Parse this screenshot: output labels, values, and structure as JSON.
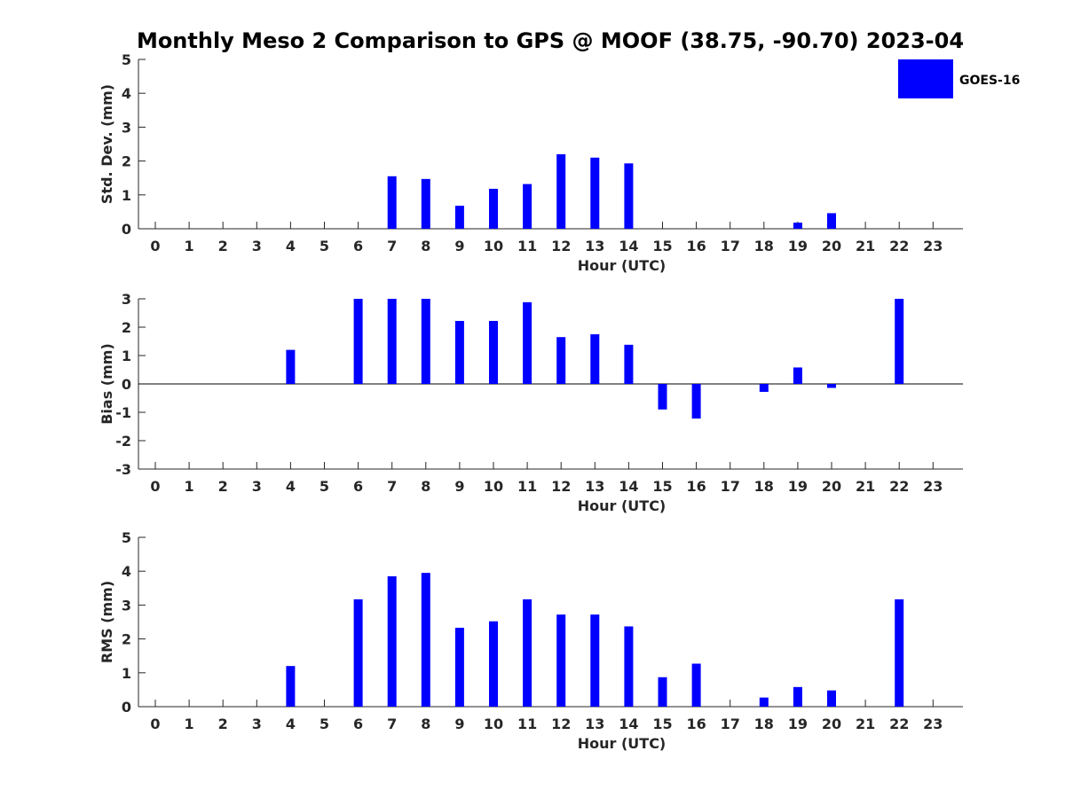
{
  "title": "Monthly Meso 2 Comparison to GPS @ MOOF (38.75, -90.70) 2023-04",
  "legend": {
    "label": "GOES-16",
    "color": "#0000ff"
  },
  "chart_data": [
    {
      "type": "bar",
      "name": "std-dev",
      "xlabel": "Hour (UTC)",
      "ylabel": "Std. Dev. (mm)",
      "ylim": [
        0,
        5
      ],
      "yticks": [
        0,
        1,
        2,
        3,
        4,
        5
      ],
      "categories": [
        "0",
        "1",
        "2",
        "3",
        "4",
        "5",
        "6",
        "7",
        "8",
        "9",
        "10",
        "11",
        "12",
        "13",
        "14",
        "15",
        "16",
        "17",
        "18",
        "19",
        "20",
        "21",
        "22",
        "23"
      ],
      "series": [
        {
          "name": "GOES-16",
          "values": [
            null,
            null,
            null,
            null,
            null,
            null,
            null,
            1.55,
            1.47,
            0.68,
            1.18,
            1.32,
            2.2,
            2.1,
            1.93,
            null,
            null,
            null,
            null,
            0.18,
            0.46,
            null,
            null,
            null
          ]
        }
      ]
    },
    {
      "type": "bar",
      "name": "bias",
      "xlabel": "Hour (UTC)",
      "ylabel": "Bias (mm)",
      "ylim": [
        -3,
        3
      ],
      "yticks": [
        -3,
        -2,
        -1,
        0,
        1,
        2,
        3
      ],
      "zero_line": true,
      "categories": [
        "0",
        "1",
        "2",
        "3",
        "4",
        "5",
        "6",
        "7",
        "8",
        "9",
        "10",
        "11",
        "12",
        "13",
        "14",
        "15",
        "16",
        "17",
        "18",
        "19",
        "20",
        "21",
        "22",
        "23"
      ],
      "series": [
        {
          "name": "GOES-16",
          "values": [
            null,
            null,
            null,
            null,
            1.2,
            null,
            3.0,
            3.0,
            3.0,
            2.22,
            2.22,
            2.88,
            1.65,
            1.75,
            1.38,
            -0.9,
            -1.22,
            null,
            -0.28,
            0.58,
            -0.14,
            null,
            3.0,
            null
          ]
        }
      ]
    },
    {
      "type": "bar",
      "name": "rms",
      "xlabel": "Hour (UTC)",
      "ylabel": "RMS (mm)",
      "ylim": [
        0,
        5
      ],
      "yticks": [
        0,
        1,
        2,
        3,
        4,
        5
      ],
      "categories": [
        "0",
        "1",
        "2",
        "3",
        "4",
        "5",
        "6",
        "7",
        "8",
        "9",
        "10",
        "11",
        "12",
        "13",
        "14",
        "15",
        "16",
        "17",
        "18",
        "19",
        "20",
        "21",
        "22",
        "23"
      ],
      "series": [
        {
          "name": "GOES-16",
          "values": [
            null,
            null,
            null,
            null,
            1.2,
            null,
            3.17,
            3.85,
            3.95,
            2.33,
            2.52,
            3.17,
            2.72,
            2.72,
            2.37,
            0.87,
            1.27,
            null,
            0.27,
            0.58,
            0.48,
            null,
            3.17,
            null
          ]
        }
      ]
    }
  ]
}
